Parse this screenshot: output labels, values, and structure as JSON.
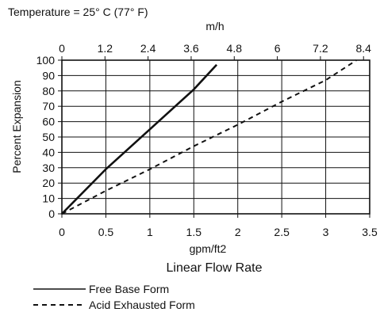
{
  "chart_data": {
    "type": "line",
    "annotation": "Temperature = 25° C (77° F)",
    "top_axis": {
      "label": "m/h",
      "ticks": [
        "0",
        "1.2",
        "2.4",
        "3.6",
        "4.8",
        "6",
        "7.2",
        "8.4"
      ],
      "tick_values_gpm": [
        0,
        0.49,
        0.98,
        1.47,
        1.96,
        2.45,
        2.94,
        3.43
      ]
    },
    "xlabel_units": "gpm/ft2",
    "xlabel": "Linear Flow Rate",
    "ylabel": "Percent Expansion",
    "xlim": [
      0,
      3.5
    ],
    "ylim": [
      0,
      100
    ],
    "x_ticks": [
      "0",
      "0.5",
      "1",
      "1.5",
      "2",
      "2.5",
      "3",
      "3.5"
    ],
    "x_tick_values": [
      0,
      0.5,
      1,
      1.5,
      2,
      2.5,
      3,
      3.5
    ],
    "y_ticks": [
      "0",
      "10",
      "20",
      "30",
      "40",
      "50",
      "60",
      "70",
      "80",
      "90",
      "100"
    ],
    "y_tick_values": [
      0,
      10,
      20,
      30,
      40,
      50,
      60,
      70,
      80,
      90,
      100
    ],
    "grid": true,
    "legend_position": "bottom-left",
    "series": [
      {
        "name": "Free Base Form",
        "style": "solid",
        "x": [
          0,
          0.5,
          1.0,
          1.5,
          1.76
        ],
        "y": [
          0,
          29,
          55,
          81,
          97
        ]
      },
      {
        "name": "Acid Exhausted Form",
        "style": "dashed",
        "x": [
          0,
          0.5,
          1.0,
          1.5,
          2.0,
          2.5,
          3.0,
          3.35
        ],
        "y": [
          0,
          15,
          29,
          44,
          58,
          73,
          87,
          100
        ]
      }
    ],
    "colors": {
      "line": "#111111",
      "grid": "#111111",
      "background": "#ffffff"
    }
  }
}
